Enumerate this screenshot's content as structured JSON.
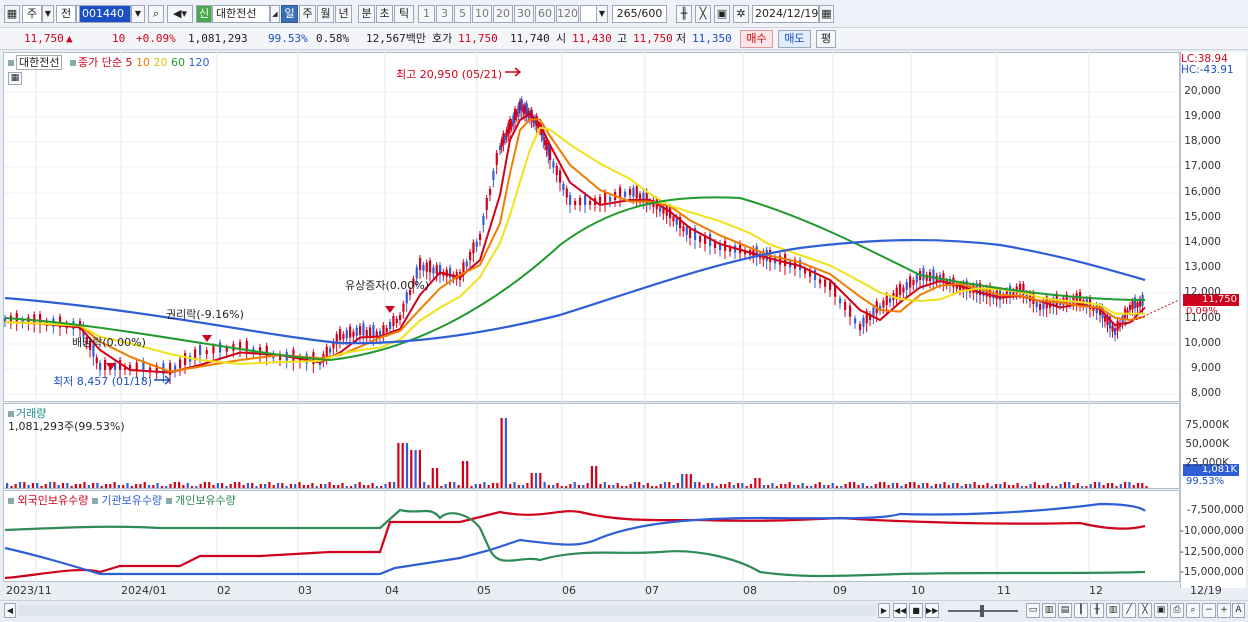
{
  "toolbar": {
    "type_label": "주",
    "type2_label": "전",
    "code": "001440",
    "badge": "신",
    "stock_name": "대한전선",
    "periods": [
      "일",
      "주",
      "월",
      "년",
      "분",
      "초",
      "틱"
    ],
    "active_period": "일",
    "intervals": [
      "1",
      "3",
      "5",
      "10",
      "20",
      "30",
      "60",
      "120"
    ],
    "count": "265",
    "count_total": "/600",
    "date": "2024/12/19"
  },
  "quote": {
    "price": "11,750",
    "direction": "▲",
    "change": "10",
    "change_pct": "+0.09%",
    "volume": "1,081,293",
    "volume_ratio": "99.53%",
    "turnover_pct": "0.58%",
    "amount": "12,567백만",
    "bid_label": "호가",
    "bid1": "11,750",
    "bid2": "11,740",
    "open_label": "시",
    "open": "11,430",
    "high_label": "고",
    "high": "11,750",
    "low_label": "저",
    "low": "11,350",
    "buy_button": "매수",
    "sell_button": "매도",
    "eval_button": "평"
  },
  "price_panel": {
    "name_label": "대한전선",
    "legend_prefix": "종가 단순",
    "ma_labels": [
      "5",
      "10",
      "20",
      "60",
      "120"
    ],
    "ma_colors": [
      "#d0021b",
      "#f07d00",
      "#f0e21a",
      "#1f9a2c",
      "#2f5fd6"
    ],
    "lc_label": "LC:38.94",
    "hc_label": "HC:-43.91",
    "annotations": {
      "high": "최고 20,950 (05/21)",
      "low": "최저 8,457 (01/18)",
      "rights_issue": "유상증자(0.00%)",
      "ex_rights": "권리락(-9.16%)",
      "ex_dividend": "배당락(0.00%)"
    },
    "price_tag": "11,750",
    "pct_tag": "0.09%",
    "y_ticks": [
      "20,000",
      "19,000",
      "18,000",
      "17,000",
      "16,000",
      "15,000",
      "14,000",
      "13,000",
      "12,000",
      "11,000",
      "10,000",
      "9,000",
      "8,000"
    ]
  },
  "volume_panel": {
    "title": "거래량",
    "current": "1,081,293주(99.53%)",
    "y_ticks": [
      "75,000K",
      "50,000K",
      "25,000K"
    ],
    "tag": "1,081K",
    "pct": "99.53%"
  },
  "holding_panel": {
    "legends": [
      "외국인보유수량",
      "기관보유수량",
      "개인보유수량"
    ],
    "legend_colors": [
      "#d0021b",
      "#2f5fd6",
      "#2e8b57"
    ],
    "y_ticks": [
      "-7,500,000",
      "-10,000,000",
      "-12,500,000",
      "-15,000,000"
    ]
  },
  "x_labels": [
    "2023/11",
    "2024/01",
    "02",
    "03",
    "04",
    "05",
    "06",
    "07",
    "08",
    "09",
    "10",
    "11",
    "12",
    "12/19"
  ]
}
